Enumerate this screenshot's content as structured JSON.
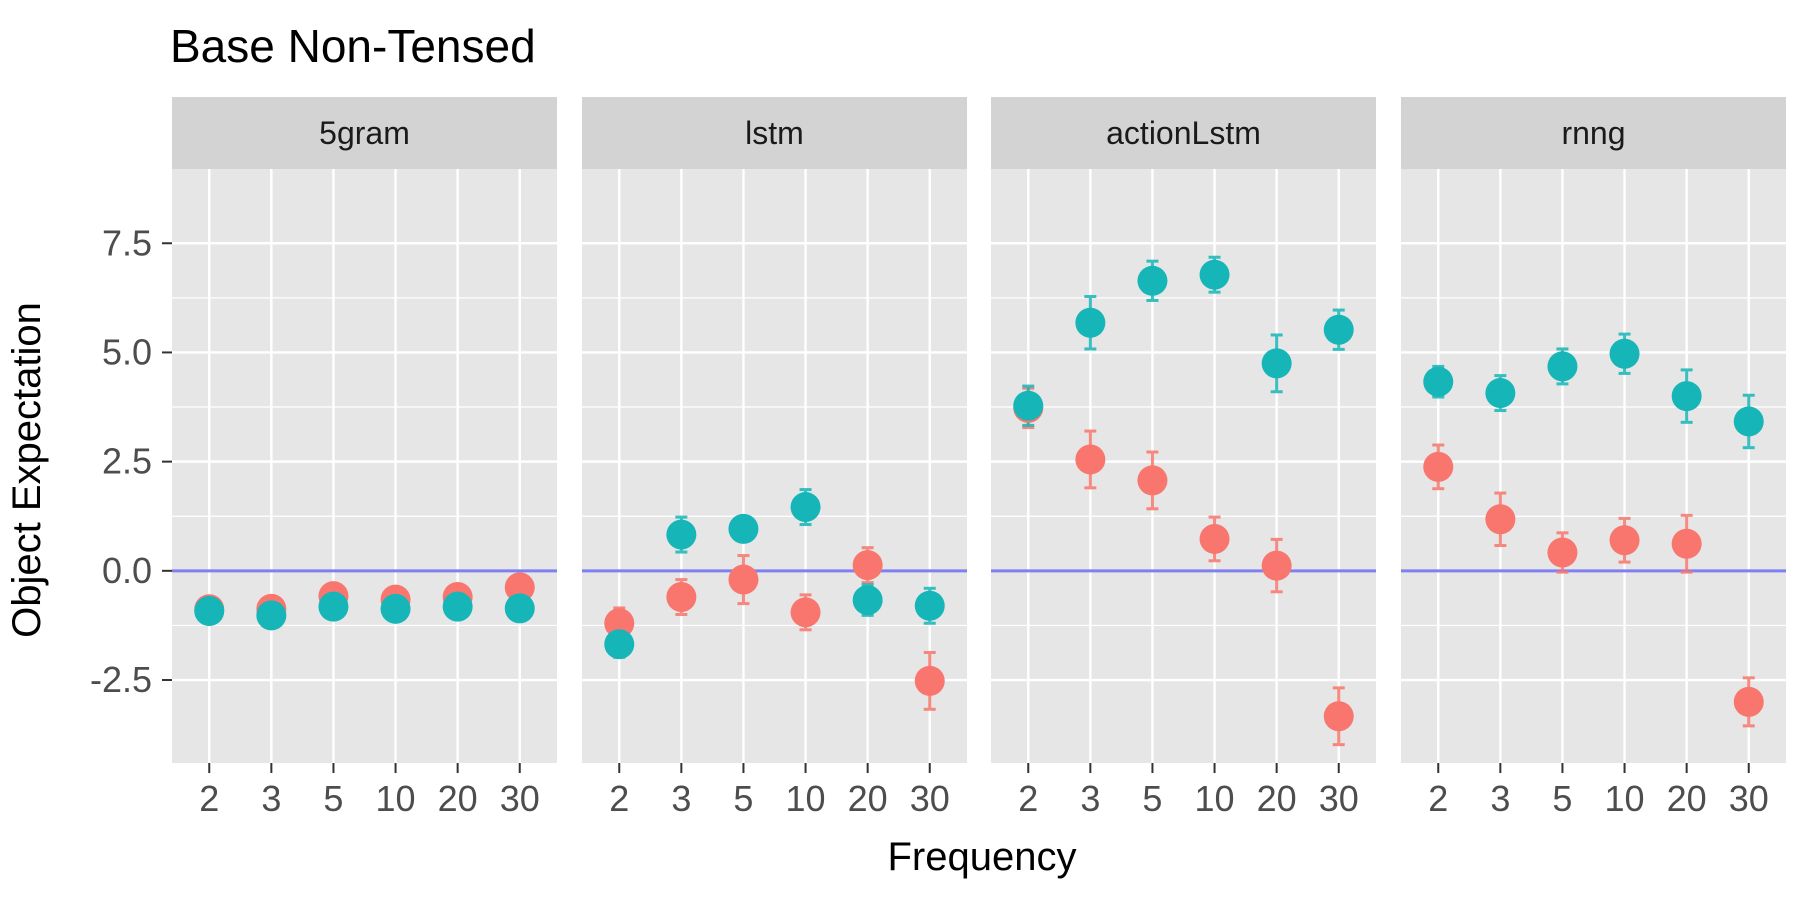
{
  "chart_data": {
    "type": "scatter",
    "title": "Base Non-Tensed",
    "xlabel": "Frequency",
    "ylabel": "Object Expectation",
    "categories": [
      "2",
      "3",
      "5",
      "10",
      "20",
      "30"
    ],
    "yticks": [
      -2.5,
      0.0,
      2.5,
      5.0,
      7.5
    ],
    "ytick_labels": [
      "-2.5",
      "0.0",
      "2.5",
      "5.0",
      "7.5"
    ],
    "ylim": [
      -4.4,
      9.2
    ],
    "grid": true,
    "legend": "none",
    "reference_line": {
      "y": 0,
      "color": "#7f7ff2"
    },
    "colors": {
      "series_a": "#f8766d",
      "series_b": "#16b6b8",
      "panel_bg": "#e6e6e6",
      "strip_bg": "#d3d3d3"
    },
    "panels": [
      {
        "label": "5gram",
        "series": [
          {
            "color": "#f8766d",
            "values": [
              -0.88,
              -0.87,
              -0.58,
              -0.66,
              -0.6,
              -0.38
            ],
            "err": [
              0.1,
              0.1,
              0.1,
              0.1,
              0.1,
              0.1
            ]
          },
          {
            "color": "#16b6b8",
            "values": [
              -0.92,
              -1.02,
              -0.82,
              -0.87,
              -0.82,
              -0.86
            ],
            "err": [
              0.15,
              0.15,
              0.12,
              0.12,
              0.12,
              0.12
            ]
          }
        ]
      },
      {
        "label": "lstm",
        "series": [
          {
            "color": "#f8766d",
            "values": [
              -1.2,
              -0.6,
              -0.2,
              -0.95,
              0.13,
              -2.52
            ],
            "err": [
              0.35,
              0.4,
              0.55,
              0.4,
              0.4,
              0.65
            ]
          },
          {
            "color": "#16b6b8",
            "values": [
              -1.68,
              0.83,
              0.96,
              1.46,
              -0.67,
              -0.8
            ],
            "err": [
              0.3,
              0.4,
              0.2,
              0.4,
              0.35,
              0.4
            ]
          }
        ]
      },
      {
        "label": "actionLstm",
        "series": [
          {
            "color": "#f8766d",
            "values": [
              3.73,
              2.55,
              2.07,
              0.73,
              0.12,
              -3.33
            ],
            "err": [
              0.45,
              0.65,
              0.65,
              0.5,
              0.6,
              0.65
            ]
          },
          {
            "color": "#16b6b8",
            "values": [
              3.78,
              5.68,
              6.64,
              6.78,
              4.75,
              5.52
            ],
            "err": [
              0.45,
              0.6,
              0.45,
              0.4,
              0.65,
              0.45
            ]
          }
        ]
      },
      {
        "label": "rnng",
        "series": [
          {
            "color": "#f8766d",
            "values": [
              2.38,
              1.18,
              0.42,
              0.7,
              0.62,
              -3.0
            ],
            "err": [
              0.5,
              0.6,
              0.45,
              0.5,
              0.65,
              0.55
            ]
          },
          {
            "color": "#16b6b8",
            "values": [
              4.33,
              4.07,
              4.68,
              4.97,
              4.0,
              3.42
            ],
            "err": [
              0.35,
              0.4,
              0.4,
              0.45,
              0.6,
              0.6
            ]
          }
        ]
      }
    ]
  }
}
